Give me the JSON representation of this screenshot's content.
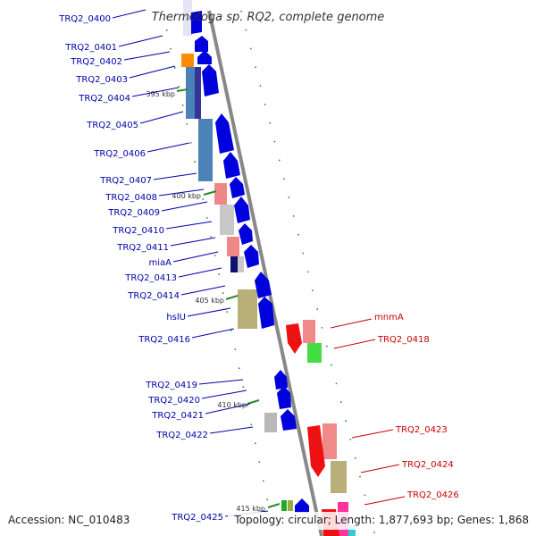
{
  "title": "Thermotoga sp. RQ2, complete genome",
  "footer": {
    "accession": "Accession: NC_010483",
    "topology": "Topology: circular; Length: 1,877,693 bp; Genes: 1,868"
  },
  "colors": {
    "forward_label": "#0000aa",
    "reverse_label": "#cc0000",
    "backbone": "#888888",
    "forward_arrow": "#0000dd",
    "reverse_arrow": "#ee1111"
  },
  "ticks": [
    "395 kbp",
    "400 kbp",
    "405 kbp",
    "410 kbp",
    "415 kbp"
  ],
  "forward_genes": [
    "TRQ2_0400",
    "TRQ2_0401",
    "TRQ2_0402",
    "TRQ2_0403",
    "TRQ2_0404",
    "TRQ2_0405",
    "TRQ2_0406",
    "TRQ2_0407",
    "TRQ2_0408",
    "TRQ2_0409",
    "TRQ2_0410",
    "TRQ2_0411",
    "miaA",
    "TRQ2_0413",
    "TRQ2_0414",
    "hslU",
    "TRQ2_0416",
    "TRQ2_0419",
    "TRQ2_0420",
    "TRQ2_0421",
    "TRQ2_0422",
    "TRQ2_0425"
  ],
  "reverse_genes": [
    "mnmA",
    "TRQ2_0418",
    "TRQ2_0423",
    "TRQ2_0424",
    "TRQ2_0426"
  ]
}
